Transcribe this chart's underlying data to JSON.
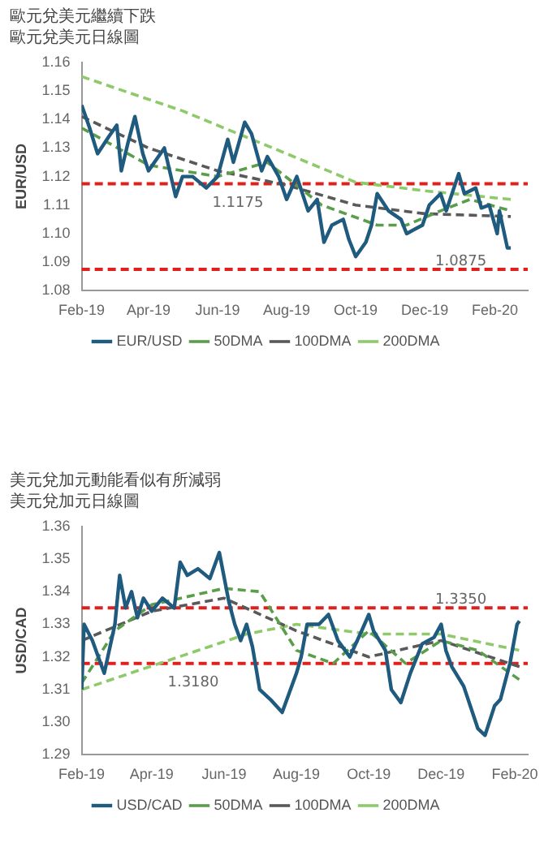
{
  "chart_data": [
    {
      "type": "line",
      "title": "歐元兌美元繼續下跌",
      "subtitle": "歐元兌美元日線圖",
      "ylabel": "EUR/USD",
      "xlim": [
        "2019-02-01",
        "2020-03-01"
      ],
      "ylim": [
        1.08,
        1.16
      ],
      "yticks": [
        1.08,
        1.09,
        {
          "value": 1.1,
          "label": "1.10"
        },
        1.11,
        1.12,
        1.13,
        1.14,
        1.15,
        1.16
      ],
      "xticks": [
        {
          "value": "2019-02-01",
          "label": "Feb-19"
        },
        {
          "value": "2019-04-01",
          "label": "Apr-19"
        },
        {
          "value": "2019-06-01",
          "label": "Jun-19"
        },
        {
          "value": "2019-08-01",
          "label": "Aug-19"
        },
        {
          "value": "2019-10-01",
          "label": "Oct-19"
        },
        {
          "value": "2019-12-01",
          "label": "Dec-19"
        },
        {
          "value": "2020-02-01",
          "label": "Feb-20"
        }
      ],
      "grid": false,
      "legend": "bottom",
      "marker": "none",
      "series": [
        {
          "name": "EUR/USD",
          "color": "#1f5a7f",
          "line_style": "solid",
          "x": [
            "2019-02-01",
            "2019-02-08",
            "2019-02-15",
            "2019-02-25",
            "2019-03-04",
            "2019-03-08",
            "2019-03-14",
            "2019-03-20",
            "2019-03-27",
            "2019-04-01",
            "2019-04-15",
            "2019-04-25",
            "2019-05-01",
            "2019-05-10",
            "2019-05-22",
            "2019-06-01",
            "2019-06-10",
            "2019-06-15",
            "2019-06-25",
            "2019-07-01",
            "2019-07-10",
            "2019-07-15",
            "2019-07-25",
            "2019-08-01",
            "2019-08-10",
            "2019-08-20",
            "2019-08-28",
            "2019-09-03",
            "2019-09-10",
            "2019-09-20",
            "2019-09-25",
            "2019-10-01",
            "2019-10-10",
            "2019-10-15",
            "2019-10-20",
            "2019-10-30",
            "2019-11-10",
            "2019-11-15",
            "2019-11-29",
            "2019-12-05",
            "2019-12-15",
            "2019-12-20",
            "2019-12-31",
            "2020-01-05",
            "2020-01-15",
            "2020-01-20",
            "2020-01-27",
            "2020-02-03",
            "2020-02-05",
            "2020-02-12",
            "2020-02-15"
          ],
          "values": [
            1.145,
            1.137,
            1.128,
            1.134,
            1.138,
            1.122,
            1.132,
            1.141,
            1.128,
            1.122,
            1.13,
            1.113,
            1.12,
            1.12,
            1.116,
            1.12,
            1.133,
            1.125,
            1.139,
            1.135,
            1.122,
            1.127,
            1.12,
            1.112,
            1.12,
            1.108,
            1.112,
            1.097,
            1.103,
            1.105,
            1.098,
            1.092,
            1.097,
            1.103,
            1.114,
            1.108,
            1.105,
            1.1,
            1.103,
            1.11,
            1.114,
            1.108,
            1.121,
            1.114,
            1.116,
            1.109,
            1.11,
            1.1,
            1.108,
            1.095,
            1.095
          ]
        },
        {
          "name": "50DMA",
          "color": "#5a9e4b",
          "line_style": "dashed",
          "x": [
            "2019-02-01",
            "2019-04-01",
            "2019-06-01",
            "2019-07-15",
            "2019-09-01",
            "2019-10-20",
            "2019-11-15",
            "2019-12-15",
            "2020-01-10",
            "2020-02-15"
          ],
          "values": [
            1.137,
            1.124,
            1.12,
            1.125,
            1.11,
            1.103,
            1.103,
            1.108,
            1.112,
            1.108
          ]
        },
        {
          "name": "100DMA",
          "color": "#595959",
          "line_style": "dashed",
          "x": [
            "2019-02-01",
            "2019-04-01",
            "2019-06-01",
            "2019-08-01",
            "2019-10-01",
            "2019-12-01",
            "2020-02-15"
          ],
          "values": [
            1.141,
            1.13,
            1.122,
            1.117,
            1.11,
            1.107,
            1.106
          ]
        },
        {
          "name": "200DMA",
          "color": "#8fca6a",
          "line_style": "dashed",
          "x": [
            "2019-02-01",
            "2019-05-01",
            "2019-08-01",
            "2019-10-01",
            "2019-12-01",
            "2020-02-15"
          ],
          "values": [
            1.155,
            1.143,
            1.128,
            1.118,
            1.115,
            1.112
          ]
        }
      ],
      "ref_lines": [
        {
          "axis": "y",
          "value": 1.1175,
          "label": "1.1175",
          "color": "#e0201b",
          "line_style": "dashed"
        },
        {
          "axis": "y",
          "value": 1.0875,
          "label": "1.0875",
          "color": "#e0201b",
          "line_style": "dashed"
        }
      ]
    },
    {
      "type": "line",
      "title": "美元兌加元動能看似有所減弱",
      "subtitle": "美元兌加元日線圖",
      "ylabel": "USD/CAD",
      "xlim": [
        "2019-02-01",
        "2020-02-12"
      ],
      "ylim": [
        1.29,
        1.36
      ],
      "yticks": [
        1.29,
        {
          "value": 1.3,
          "label": "1.30"
        },
        1.31,
        1.32,
        1.33,
        1.34,
        1.35,
        1.36
      ],
      "xticks": [
        {
          "value": "2019-02-01",
          "label": "Feb-19"
        },
        {
          "value": "2019-04-01",
          "label": "Apr-19"
        },
        {
          "value": "2019-06-01",
          "label": "Jun-19"
        },
        {
          "value": "2019-08-01",
          "label": "Aug-19"
        },
        {
          "value": "2019-10-01",
          "label": "Oct-19"
        },
        {
          "value": "2019-12-01",
          "label": "Dec-19"
        },
        {
          "value": "2020-02-01",
          "label": "Feb-20"
        }
      ],
      "grid": false,
      "legend": "bottom",
      "marker": "none",
      "series": [
        {
          "name": "USD/CAD",
          "color": "#1f5a7f",
          "line_style": "solid",
          "x": [
            "2019-02-01",
            "2019-02-03",
            "2019-02-10",
            "2019-02-15",
            "2019-02-20",
            "2019-03-01",
            "2019-03-05",
            "2019-03-10",
            "2019-03-15",
            "2019-03-20",
            "2019-03-25",
            "2019-04-01",
            "2019-04-10",
            "2019-04-20",
            "2019-04-25",
            "2019-05-01",
            "2019-05-10",
            "2019-05-20",
            "2019-05-28",
            "2019-06-05",
            "2019-06-10",
            "2019-06-15",
            "2019-06-20",
            "2019-06-25",
            "2019-07-01",
            "2019-07-10",
            "2019-07-15",
            "2019-07-20",
            "2019-08-01",
            "2019-08-05",
            "2019-08-10",
            "2019-08-15",
            "2019-08-20",
            "2019-08-28",
            "2019-09-05",
            "2019-09-15",
            "2019-09-25",
            "2019-10-01",
            "2019-10-05",
            "2019-10-15",
            "2019-10-20",
            "2019-10-28",
            "2019-11-05",
            "2019-11-15",
            "2019-11-25",
            "2019-12-01",
            "2019-12-05",
            "2019-12-10",
            "2019-12-20",
            "2020-01-01",
            "2020-01-07",
            "2020-01-15",
            "2020-01-20",
            "2020-01-28",
            "2020-02-03",
            "2020-02-05"
          ],
          "values": [
            1.31,
            1.33,
            1.325,
            1.32,
            1.315,
            1.33,
            1.345,
            1.335,
            1.34,
            1.332,
            1.338,
            1.334,
            1.338,
            1.335,
            1.349,
            1.345,
            1.347,
            1.344,
            1.352,
            1.337,
            1.33,
            1.325,
            1.33,
            1.323,
            1.31,
            1.307,
            1.305,
            1.303,
            1.315,
            1.32,
            1.33,
            1.33,
            1.33,
            1.333,
            1.325,
            1.32,
            1.328,
            1.333,
            1.328,
            1.322,
            1.31,
            1.306,
            1.315,
            1.324,
            1.326,
            1.33,
            1.322,
            1.317,
            1.311,
            1.298,
            1.296,
            1.305,
            1.307,
            1.318,
            1.33,
            1.331
          ]
        },
        {
          "name": "50DMA",
          "color": "#5a9e4b",
          "line_style": "dashed",
          "x": [
            "2019-02-01",
            "2019-03-01",
            "2019-04-01",
            "2019-06-01",
            "2019-07-01",
            "2019-08-01",
            "2019-09-01",
            "2019-10-01",
            "2019-11-01",
            "2019-12-01",
            "2020-01-01",
            "2020-02-05"
          ],
          "values": [
            1.312,
            1.328,
            1.336,
            1.341,
            1.34,
            1.322,
            1.318,
            1.328,
            1.318,
            1.325,
            1.322,
            1.313
          ]
        },
        {
          "name": "100DMA",
          "color": "#595959",
          "line_style": "dashed",
          "x": [
            "2019-02-01",
            "2019-04-01",
            "2019-06-01",
            "2019-08-01",
            "2019-10-01",
            "2019-12-01",
            "2020-02-05"
          ],
          "values": [
            1.325,
            1.334,
            1.338,
            1.328,
            1.32,
            1.325,
            1.317
          ]
        },
        {
          "name": "200DMA",
          "color": "#8fca6a",
          "line_style": "dashed",
          "x": [
            "2019-02-01",
            "2019-06-20",
            "2019-08-01",
            "2019-10-01",
            "2019-12-01",
            "2020-02-05"
          ],
          "values": [
            1.31,
            1.327,
            1.33,
            1.327,
            1.327,
            1.322
          ]
        }
      ],
      "ref_lines": [
        {
          "axis": "y",
          "value": 1.335,
          "label": "1.3350",
          "color": "#e0201b",
          "line_style": "dashed"
        },
        {
          "axis": "y",
          "value": 1.318,
          "label": "1.3180",
          "color": "#e0201b",
          "line_style": "dashed"
        }
      ]
    }
  ]
}
